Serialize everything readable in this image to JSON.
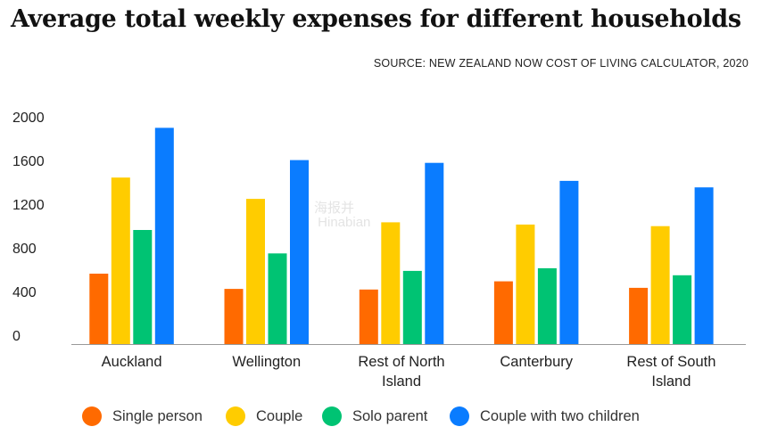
{
  "header": {
    "title": "Average total weekly expenses for different households",
    "source": "SOURCE: NEW ZEALAND NOW COST OF LIVING CALCULATOR, 2020"
  },
  "chart_data": {
    "type": "bar",
    "title": "Average total weekly expenses for different households",
    "xlabel": "",
    "ylabel": "",
    "ylim": [
      0,
      2000
    ],
    "yticks": [
      "0",
      "400",
      "800",
      "1200",
      "1600",
      "2000"
    ],
    "grid": false,
    "legend_position": "bottom",
    "categories": [
      [
        "Auckland"
      ],
      [
        "Wellington"
      ],
      [
        "Rest of North",
        "Island"
      ],
      [
        "Canterbury"
      ],
      [
        "Rest of South",
        "Island"
      ]
    ],
    "series": [
      {
        "name": "Single person",
        "color": "#ff6a00",
        "values": [
          645,
          505,
          500,
          575,
          515
        ]
      },
      {
        "name": "Couple",
        "color": "#ffcc00",
        "values": [
          1525,
          1330,
          1115,
          1095,
          1080
        ]
      },
      {
        "name": "Solo parent",
        "color": "#00c373",
        "values": [
          1045,
          830,
          670,
          695,
          630
        ]
      },
      {
        "name": "Couple with two children",
        "color": "#0a7cff",
        "values": [
          1980,
          1685,
          1660,
          1495,
          1435
        ]
      }
    ]
  }
}
